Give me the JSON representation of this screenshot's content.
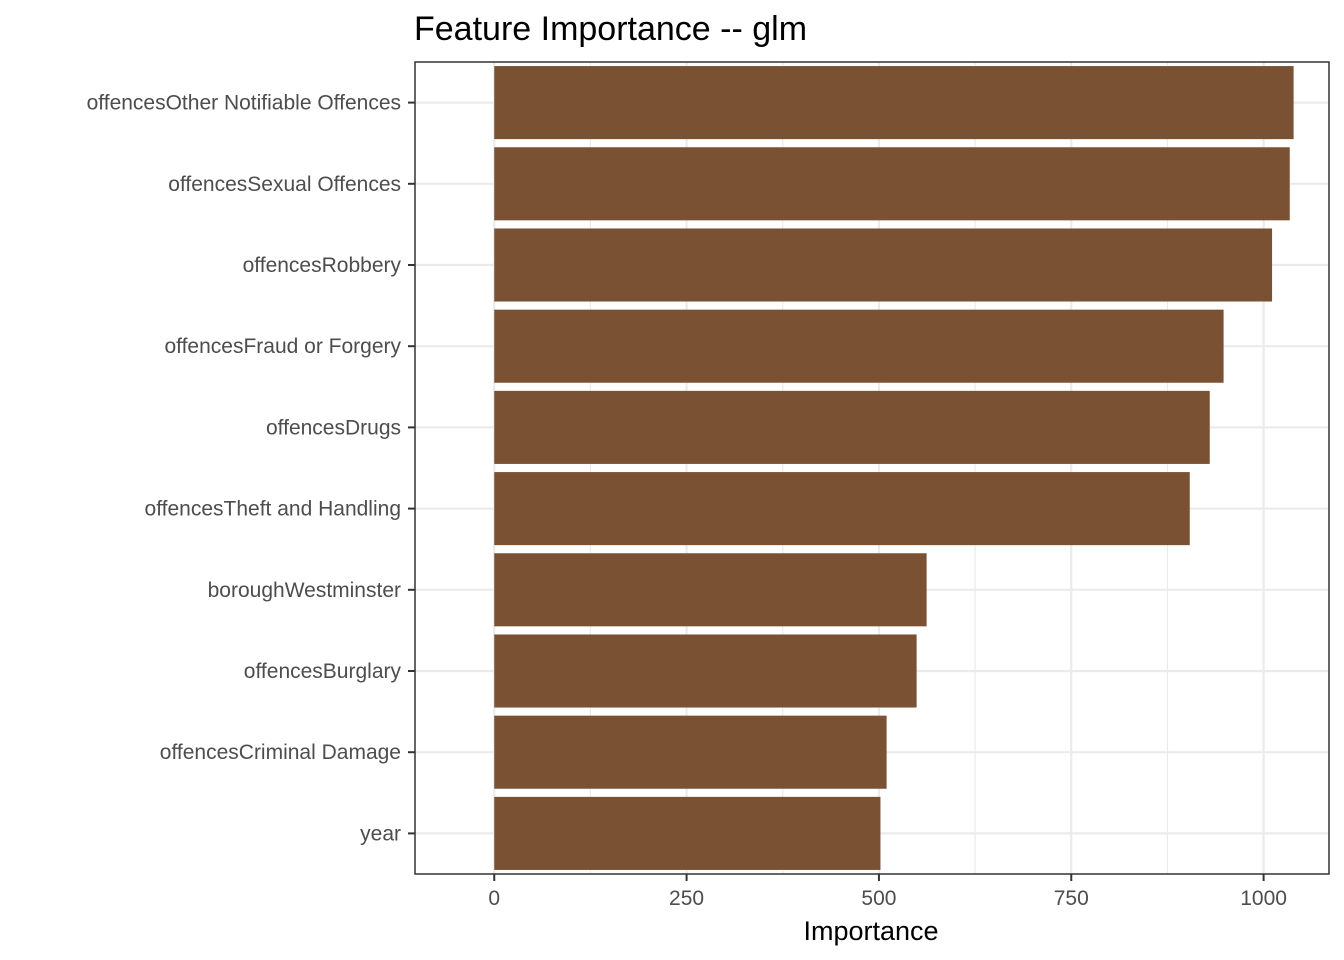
{
  "chart_data": {
    "type": "bar",
    "orientation": "horizontal",
    "title": "Feature Importance -- glm",
    "xlabel": "Importance",
    "ylabel": "",
    "xlim": [
      -103,
      1085
    ],
    "x_ticks": [
      0,
      250,
      500,
      750,
      1000
    ],
    "x_tick_labels": [
      "0",
      "250",
      "500",
      "750",
      "1000"
    ],
    "categories": [
      "offencesOther Notifiable Offences",
      "offencesSexual Offences",
      "offencesRobbery",
      "offencesFraud or Forgery",
      "offencesDrugs",
      "offencesTheft and Handling",
      "boroughWestminster",
      "offencesBurglary",
      "offencesCriminal Damage",
      "year"
    ],
    "values": [
      1039,
      1034,
      1011,
      948,
      930,
      904,
      562,
      549,
      510,
      502
    ],
    "bar_color": "#7a5233",
    "grid": true,
    "legend": "none"
  }
}
